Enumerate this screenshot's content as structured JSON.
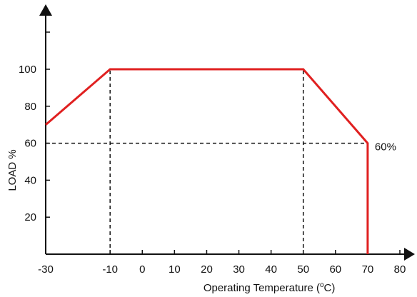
{
  "chart_data": {
    "type": "line",
    "title": "",
    "xlabel": "Operating Temperature (",
    "xlabel_unit_sup": "o",
    "xlabel_unit": "C)",
    "ylabel": "LOAD %",
    "xlim": [
      -30,
      80
    ],
    "ylim": [
      0,
      100
    ],
    "x_ticks": [
      -30,
      -10,
      0,
      10,
      20,
      30,
      40,
      50,
      60,
      70,
      80
    ],
    "y_ticks": [
      20,
      40,
      60,
      80,
      100
    ],
    "grid": false,
    "series": [
      {
        "x": [
          -30,
          -10,
          50,
          70,
          70
        ],
        "y": [
          70,
          100,
          100,
          60,
          0
        ]
      }
    ],
    "reference_lines": [
      {
        "from": [
          -10,
          0
        ],
        "to": [
          -10,
          100
        ]
      },
      {
        "from": [
          50,
          0
        ],
        "to": [
          50,
          100
        ]
      },
      {
        "from": [
          -30,
          60
        ],
        "to": [
          70,
          60
        ]
      }
    ],
    "annotations": [
      {
        "text": "60%",
        "x": 70,
        "y": 60
      }
    ],
    "colors": {
      "line": "#e02020",
      "axis": "#111111",
      "reference": "#111111"
    }
  }
}
